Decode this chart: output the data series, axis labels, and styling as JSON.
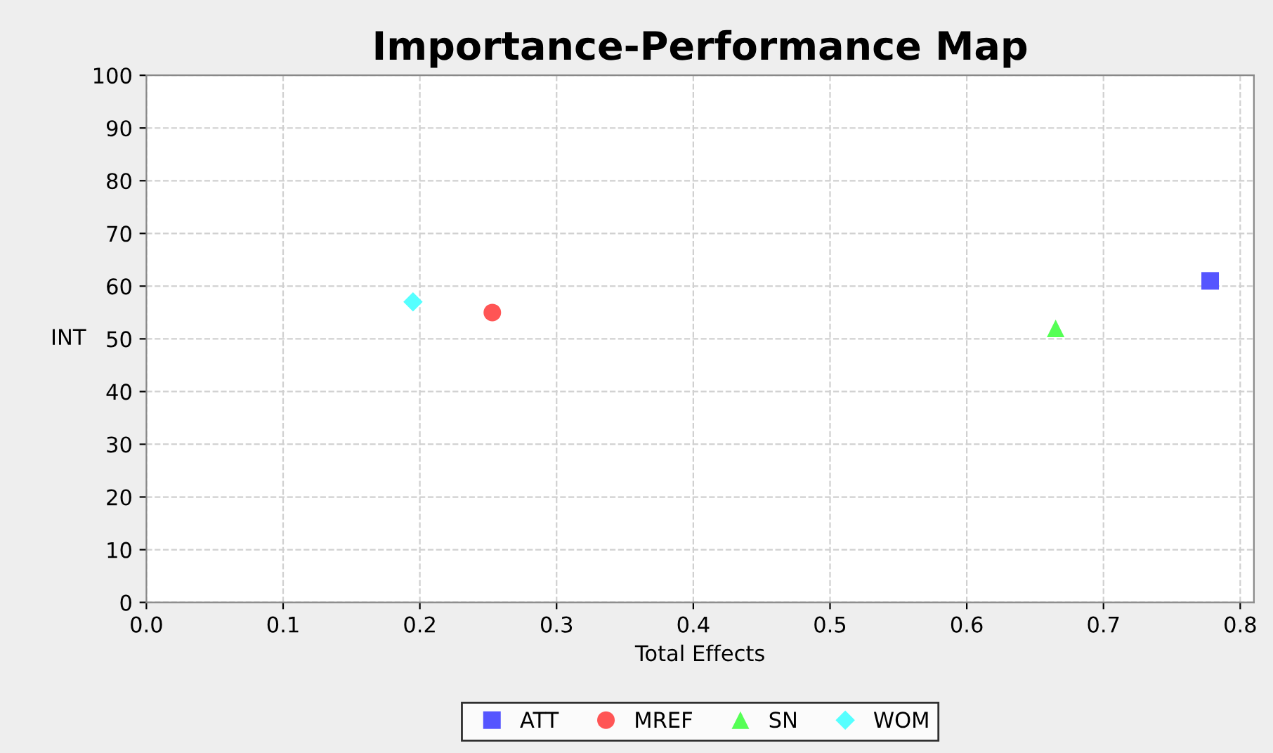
{
  "chart_data": {
    "type": "scatter",
    "title": "Importance-Performance Map",
    "xlabel": "Total Effects",
    "ylabel": "INT",
    "series": [
      {
        "name": "ATT",
        "color": "#5555ff",
        "marker": "square",
        "x": [
          0.778
        ],
        "values": [
          61
        ]
      },
      {
        "name": "MREF",
        "color": "#ff5555",
        "marker": "circle",
        "x": [
          0.253
        ],
        "values": [
          55
        ]
      },
      {
        "name": "SN",
        "color": "#55ff55",
        "marker": "triangle",
        "x": [
          0.665
        ],
        "values": [
          52
        ]
      },
      {
        "name": "WOM",
        "color": "#55ffff",
        "marker": "diamond",
        "x": [
          0.195
        ],
        "values": [
          57
        ]
      }
    ],
    "xlim": [
      0,
      0.81
    ],
    "ylim": [
      0,
      100
    ],
    "xticks": [
      {
        "value": 0,
        "label": "0.0"
      },
      0.1,
      0.2,
      0.3,
      0.4,
      0.5,
      0.6,
      0.7,
      0.8
    ],
    "yticks": [
      0,
      10,
      20,
      30,
      40,
      50,
      60,
      70,
      80,
      90,
      100
    ],
    "grid": true,
    "legend": "bottom"
  }
}
